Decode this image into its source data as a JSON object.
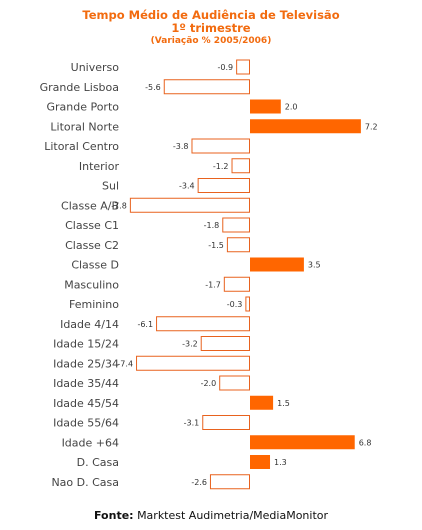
{
  "colors": {
    "title": "#f26b0f",
    "positive_fill": "#ff6600",
    "negative_stroke": "#e8621e",
    "negative_fill": "#ffffff"
  },
  "chart_data": {
    "type": "bar",
    "orientation": "horizontal",
    "title": "Tempo Médio de Audiência  de Televisão",
    "subtitle": "1º trimestre",
    "subtitle2": "(Variação % 2005/2006)",
    "categories": [
      "Universo",
      "Grande Lisboa",
      "Grande Porto",
      "Litoral Norte",
      "Litoral Centro",
      "Interior",
      "Sul",
      "Classe A/B",
      "Classe C1",
      "Classe C2",
      "Classe D",
      "Masculino",
      "Feminino",
      "Idade 4/14",
      "Idade 15/24",
      "Idade 25/34",
      "Idade 35/44",
      "Idade 45/54",
      "Idade 55/64",
      "Idade +64",
      "D. Casa",
      "Nao D. Casa"
    ],
    "values": [
      -0.9,
      -5.6,
      2.0,
      7.2,
      -3.8,
      -1.2,
      -3.4,
      -7.8,
      -1.8,
      -1.5,
      3.5,
      -1.7,
      -0.3,
      -6.1,
      -3.2,
      -7.4,
      -2.0,
      1.5,
      -3.1,
      6.8,
      1.3,
      -2.6
    ],
    "value_labels": [
      "-0.9",
      "-5.6",
      "2.0",
      "7.2",
      "-3.8",
      "-1.2",
      "-3.4",
      "-7.8",
      "-1.8",
      "-1.5",
      "3.5",
      "-1.7",
      "-0.3",
      "-6.1",
      "-3.2",
      "-7.4",
      "-2.0",
      "1.5",
      "-3.1",
      "6.8",
      "1.3",
      "-2.6"
    ],
    "xlim": [
      -8,
      7.2
    ],
    "grid": false,
    "legend": "none"
  },
  "footer": {
    "source_label": "Fonte:",
    "source_text": "Marktest Audimetria/MediaMonitor"
  }
}
